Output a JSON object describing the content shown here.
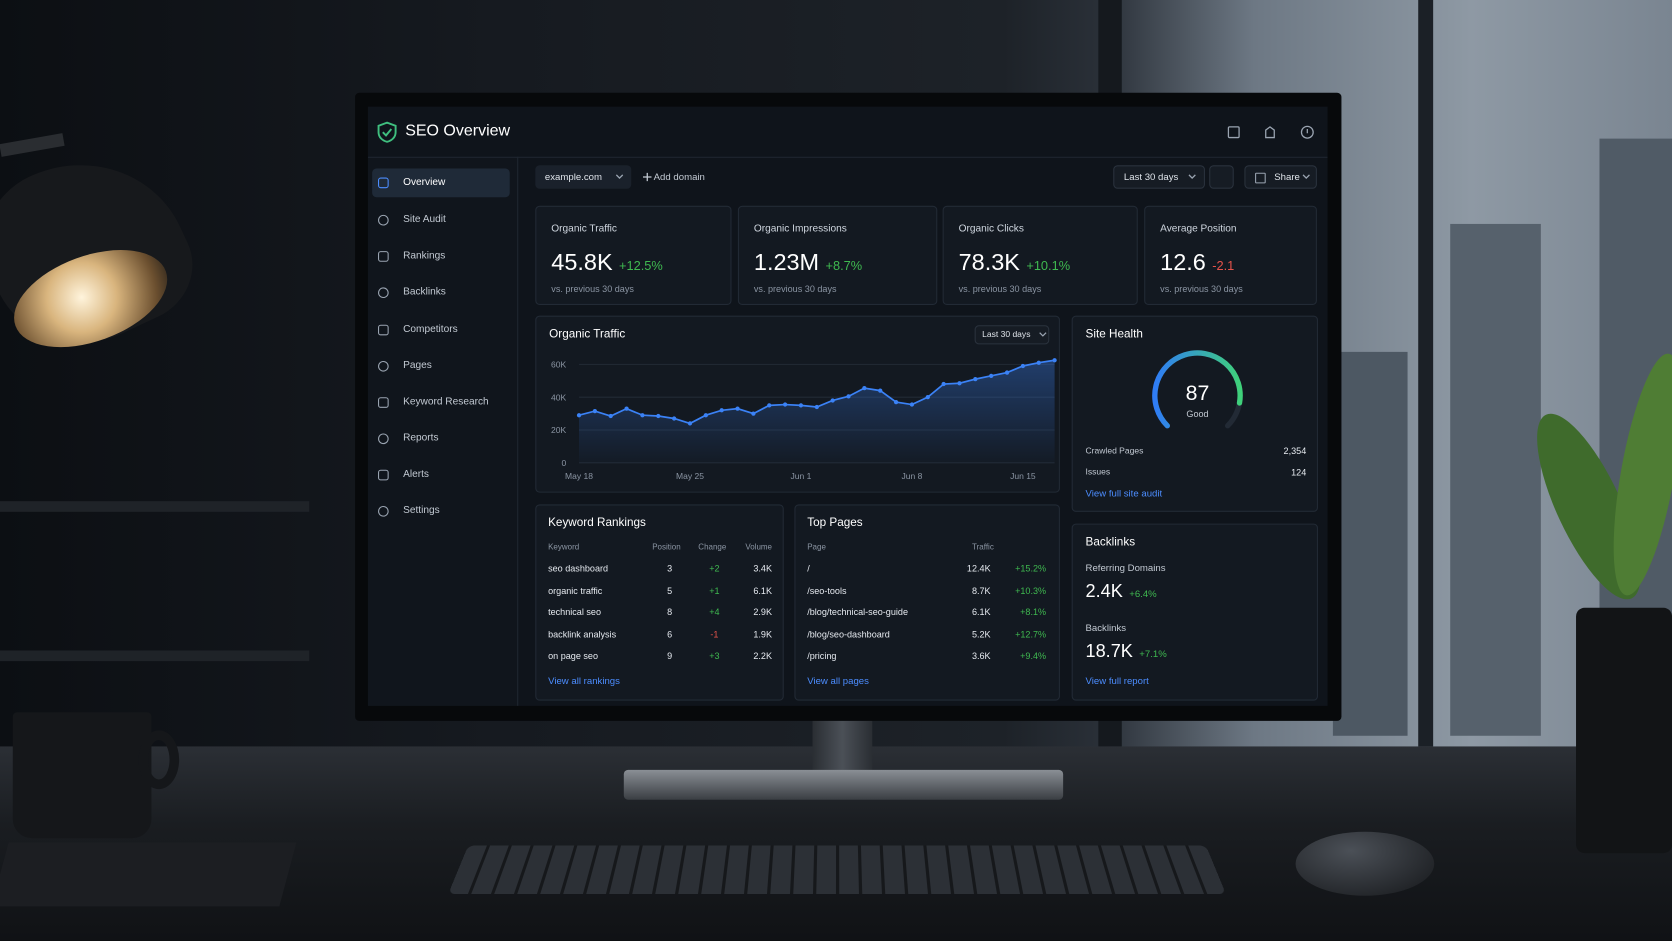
{
  "header": {
    "title": "SEO Overview"
  },
  "sidebar": {
    "items": [
      "Overview",
      "Site Audit",
      "Rankings",
      "Backlinks",
      "Competitors",
      "Pages",
      "Keyword Research",
      "Reports",
      "Alerts",
      "Settings"
    ]
  },
  "toolbar": {
    "domain": "example.com",
    "add_domain": "Add domain",
    "date_range": "Last 30 days",
    "share": "Share"
  },
  "kpis": [
    {
      "label": "Organic Traffic",
      "value": "45.8K",
      "change": "+12.5%",
      "note": "vs. previous 30 days"
    },
    {
      "label": "Organic Impressions",
      "value": "1.23M",
      "change": "+8.7%",
      "note": "vs. previous 30 days"
    },
    {
      "label": "Organic Clicks",
      "value": "78.3K",
      "change": "+10.1%",
      "note": "vs. previous 30 days"
    },
    {
      "label": "Average Position",
      "value": "12.6",
      "change": "-2.1",
      "note": "vs. previous 30 days"
    }
  ],
  "chart_data": {
    "type": "line",
    "title": "Organic Traffic",
    "period": "Last 30 days",
    "color": "#3b82f6",
    "grid": true,
    "categories": [
      "May 18",
      null,
      null,
      null,
      null,
      null,
      null,
      "May 25",
      null,
      null,
      null,
      null,
      null,
      null,
      "Jun 1",
      null,
      null,
      null,
      null,
      null,
      null,
      "Jun 8",
      null,
      null,
      null,
      null,
      null,
      null,
      "Jun 15",
      null,
      null
    ],
    "values": [
      29000,
      31500,
      28500,
      33000,
      29000,
      28500,
      27000,
      24000,
      29000,
      32000,
      33000,
      30000,
      35000,
      35500,
      35000,
      34000,
      38000,
      40500,
      45500,
      44000,
      37000,
      35500,
      40000,
      48000,
      48500,
      51000,
      53000,
      55000,
      59000,
      61000,
      62500
    ],
    "ylim": [
      0,
      65000
    ],
    "yticks": [
      0,
      {
        "value": 20000,
        "label": "20K"
      },
      {
        "value": 40000,
        "label": "40K"
      },
      {
        "value": 60000,
        "label": "60K"
      }
    ]
  },
  "site_health": {
    "title": "Site Health",
    "score": 87,
    "status": "Good",
    "rows": [
      [
        "Crawled Pages",
        "2,354"
      ],
      [
        "Issues",
        "124"
      ]
    ],
    "link": "View full site audit"
  },
  "keyword_rankings": {
    "title": "Keyword Rankings",
    "columns": [
      "Keyword",
      "Position",
      "Change",
      "Volume"
    ],
    "rows": [
      [
        "seo dashboard",
        "3",
        "+2",
        "3.4K"
      ],
      [
        "organic traffic",
        "5",
        "+1",
        "6.1K"
      ],
      [
        "technical seo",
        "8",
        "+4",
        "2.9K"
      ],
      [
        "backlink analysis",
        "6",
        "-1",
        "1.9K"
      ],
      [
        "on page seo",
        "9",
        "+3",
        "2.2K"
      ]
    ],
    "link": "View all rankings"
  },
  "top_pages": {
    "title": "Top Pages",
    "columns": [
      "Page",
      "Traffic"
    ],
    "rows": [
      [
        "/",
        "12.4K",
        "+15.2%"
      ],
      [
        "/seo-tools",
        "8.7K",
        "+10.3%"
      ],
      [
        "/blog/technical-seo-guide",
        "6.1K",
        "+8.1%"
      ],
      [
        "/blog/seo-dashboard",
        "5.2K",
        "+12.7%"
      ],
      [
        "/pricing",
        "3.6K",
        "+9.4%"
      ]
    ],
    "link": "View all pages"
  },
  "backlinks": {
    "title": "Backlinks",
    "metrics": [
      {
        "label": "Referring Domains",
        "value": "2.4K",
        "change": "+6.4%"
      },
      {
        "label": "Backlinks",
        "value": "18.7K",
        "change": "+7.1%"
      }
    ],
    "link": "View full report"
  }
}
